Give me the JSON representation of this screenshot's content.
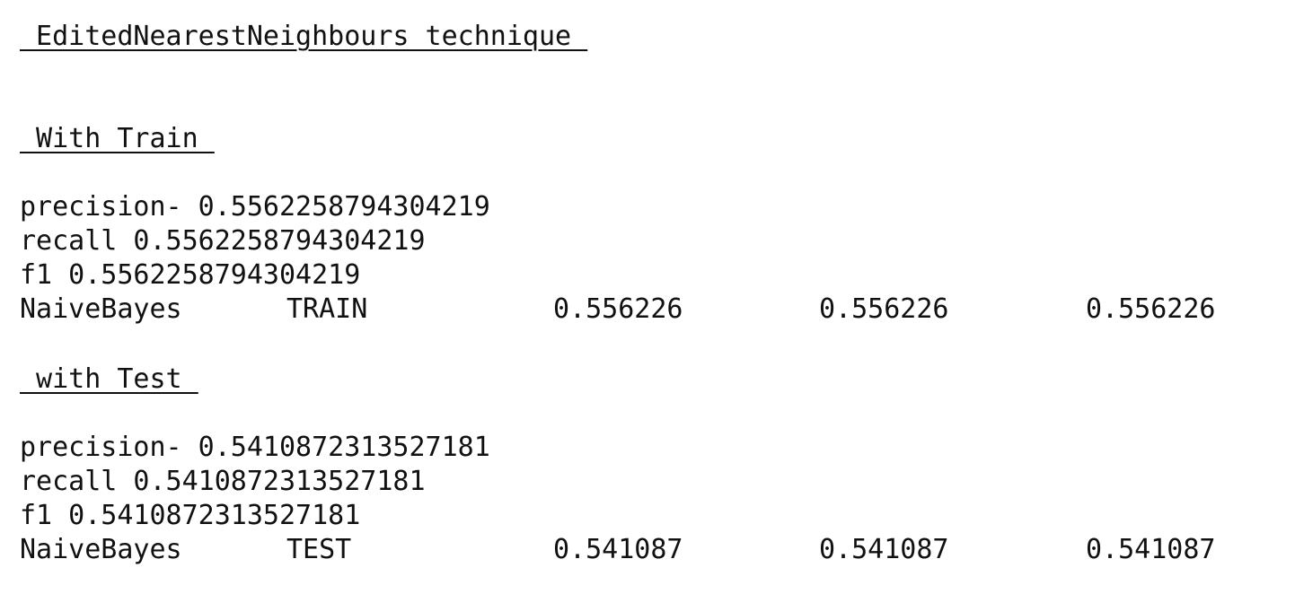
{
  "heading": "_EditedNearestNeighbours technique_",
  "train": {
    "section_label": "_With Train_",
    "precision_line": "precision- 0.5562258794304219",
    "recall_line": "recall 0.5562258794304219",
    "f1_line": "f1 0.5562258794304219",
    "row": [
      "NaiveBayes",
      "TRAIN",
      "0.556226",
      "0.556226",
      "0.556226"
    ]
  },
  "test": {
    "section_label": "_with Test_",
    "precision_line": "precision- 0.5410872313527181",
    "recall_line": "recall 0.5410872313527181",
    "f1_line": "f1 0.5410872313527181",
    "row": [
      "NaiveBayes",
      "TEST",
      "0.541087",
      "0.541087",
      "0.541087"
    ]
  }
}
